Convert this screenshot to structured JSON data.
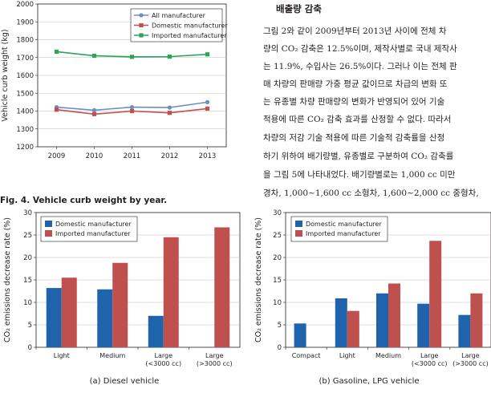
{
  "figure4": {
    "caption": "Fig. 4. Vehicle curb weight by year."
  },
  "figure5": {
    "caption_a": "(a) Diesel vehicle",
    "caption_b": "(b) Gasoline, LPG vehicle"
  },
  "section": {
    "heading": "배출량 감축",
    "lines": [
      "그림 2와 같이 2009년부터 2013년 사이에 전체 차",
      "량의 CO₂ 감축은 12.5%이며, 제작사별로 국내 제작사",
      "는 11.9%, 수입사는 26.5%이다. 그러나 이는 전체 판",
      "매 차량의 판매량 가중 평균 값이므로 차급의 변화 또",
      "는 유종별 차량 판매량의 변화가 반영되어 있어 기술",
      "적용에 따른 CO₂ 감축 효과를 산정할 수 없다. 따라서",
      "차량의 저감 기술 적용에 따른 기술적 감축률을 산정",
      "하기 위하여 배기량별, 유종별로 구분하여 CO₂ 감축률",
      "을 그림 5에 나타내었다. 배기량별로는 1,000 cc 미만",
      "경차, 1,000~1,600 cc 소형차, 1,600~2,000 cc 중형차,"
    ]
  },
  "chart_data": [
    {
      "type": "line",
      "xlabel": "",
      "ylabel": "Vehicle curb weight (kg)",
      "x": [
        "2009",
        "2010",
        "2011",
        "2012",
        "2013"
      ],
      "ylim": [
        1200,
        2000
      ],
      "yticks": [
        "1200",
        "1300",
        "1400",
        "1500",
        "1600",
        "1700",
        "1800",
        "1900",
        "2000"
      ],
      "grid": true,
      "legend": "top-right",
      "series": [
        {
          "name": "All manufacturer",
          "values": [
            1422,
            1405,
            1422,
            1420,
            1450
          ],
          "color": "#6d8fbf",
          "marker": "circle"
        },
        {
          "name": "Domestic manufacturer",
          "values": [
            1408,
            1383,
            1400,
            1390,
            1414
          ],
          "color": "#c0504d",
          "marker": "square"
        },
        {
          "name": "Imported manufacturer",
          "values": [
            1733,
            1710,
            1704,
            1705,
            1718
          ],
          "color": "#2ca55a",
          "marker": "square"
        }
      ]
    },
    {
      "type": "bar",
      "xlabel": "",
      "ylabel": "CO₂ emissions decrease rate (%)",
      "categories": [
        [
          "Light"
        ],
        [
          "Medium"
        ],
        [
          "Large",
          "(<3000 cc)"
        ],
        [
          "Large",
          "(>3000 cc)"
        ]
      ],
      "ylim": [
        0,
        30
      ],
      "yticks": [
        "0",
        "5",
        "10",
        "15",
        "20",
        "25",
        "30"
      ],
      "grid": true,
      "legend": "top-left",
      "series": [
        {
          "name": "Domestic manufacturer",
          "values": [
            13.2,
            12.9,
            7.0,
            null
          ],
          "color": "#1f63ad"
        },
        {
          "name": "Imported manufacturer",
          "values": [
            15.5,
            18.8,
            24.5,
            26.7
          ],
          "color": "#c0504d"
        }
      ]
    },
    {
      "type": "bar",
      "xlabel": "",
      "ylabel": "CO₂ emissions decrease rate (%)",
      "categories": [
        [
          "Compact"
        ],
        [
          "Light"
        ],
        [
          "Medium"
        ],
        [
          "Large",
          "(<3000 cc)"
        ],
        [
          "Large",
          "(>3000 cc)"
        ]
      ],
      "ylim": [
        0,
        30
      ],
      "yticks": [
        "0",
        "5",
        "10",
        "15",
        "20",
        "25",
        "30"
      ],
      "grid": true,
      "legend": "top-left",
      "series": [
        {
          "name": "Domestic manufacturer",
          "values": [
            5.3,
            10.9,
            12.0,
            9.7,
            7.2
          ],
          "color": "#1f63ad"
        },
        {
          "name": "Imported manufacturer",
          "values": [
            null,
            8.1,
            14.2,
            23.7,
            12.0
          ],
          "color": "#c0504d"
        }
      ]
    }
  ]
}
